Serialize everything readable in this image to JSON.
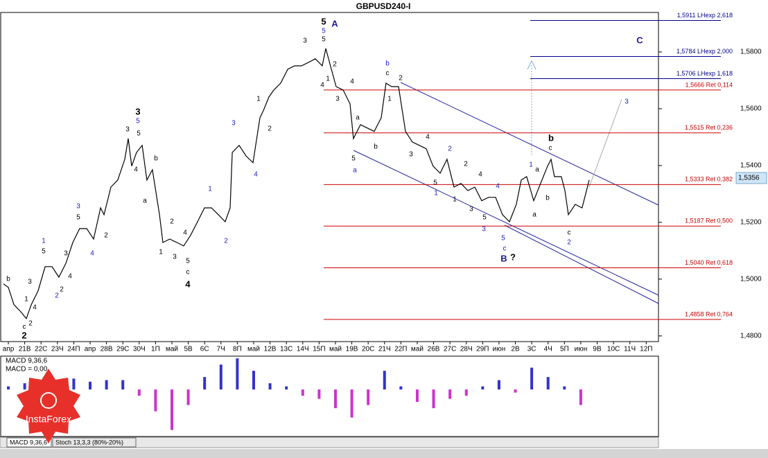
{
  "chart_data": {
    "type": "line",
    "title": "GBPUSD240-I",
    "color": "#000000",
    "categories": [
      "апр",
      "21В",
      "22С",
      "23Ч",
      "24П",
      "апр",
      "28В",
      "29С",
      "30Ч",
      "1П",
      "май",
      "5В",
      "6С",
      "7Ч",
      "8П",
      "май",
      "12В",
      "13С",
      "14Ч",
      "15П",
      "май",
      "19В",
      "20С",
      "21Ч",
      "22П",
      "май",
      "26В",
      "27С",
      "28Ч",
      "29П",
      "июн",
      "2В",
      "3С",
      "4Ч",
      "5П",
      "июн",
      "9В",
      "10С",
      "11Ч",
      "12П"
    ],
    "x": [
      -0.3,
      0,
      0.34,
      0.76,
      1.1,
      1.4,
      1.82,
      2.25,
      2.67,
      3.09,
      3.52,
      3.94,
      4.36,
      4.79,
      5.21,
      5.64,
      5.85,
      6.27,
      6.69,
      7.12,
      7.33,
      7.54,
      7.84,
      8.18,
      8.47,
      8.81,
      9.24,
      9.45,
      9.87,
      10.3,
      10.72,
      11.14,
      11.57,
      11.99,
      12.42,
      12.84,
      13.26,
      13.56,
      13.69,
      14.11,
      14.53,
      14.96,
      15.38,
      15.59,
      15.93,
      16.23,
      16.65,
      17.08,
      17.5,
      17.92,
      18.35,
      18.77,
      19.19,
      19.41,
      19.75,
      20.04,
      20.47,
      20.89,
      21.1,
      21.53,
      21.95,
      22.37,
      22.8,
      23.09,
      23.43,
      23.86,
      24.28,
      24.7,
      25.13,
      25.55,
      25.97,
      26.4,
      26.82,
      27.25,
      27.67,
      28.09,
      28.52,
      28.94,
      29.36,
      29.79,
      30.21,
      30.64,
      31.06,
      31.36,
      31.69,
      32.12,
      32.54,
      32.97,
      33.18,
      33.39,
      33.81,
      34.03,
      34.24,
      34.66,
      35.08,
      35.51
    ],
    "values": [
      1.4983,
      1.4971,
      1.491,
      1.4885,
      1.4861,
      1.491,
      1.4959,
      1.5044,
      1.5044,
      1.5007,
      1.5056,
      1.5129,
      1.5178,
      1.5178,
      1.5141,
      1.5251,
      1.5227,
      1.5324,
      1.5349,
      1.5422,
      1.5495,
      1.5398,
      1.5446,
      1.5471,
      1.5349,
      1.5385,
      1.5227,
      1.5129,
      1.5141,
      1.5129,
      1.5117,
      1.5154,
      1.5202,
      1.5251,
      1.5251,
      1.5227,
      1.5202,
      1.5251,
      1.5446,
      1.5471,
      1.5434,
      1.541,
      1.5568,
      1.5593,
      1.5641,
      1.5666,
      1.569,
      1.5739,
      1.5751,
      1.5751,
      1.5763,
      1.5776,
      1.5751,
      1.5812,
      1.5739,
      1.5678,
      1.5666,
      1.5617,
      1.5495,
      1.5544,
      1.5532,
      1.552,
      1.5568,
      1.569,
      1.5678,
      1.5678,
      1.552,
      1.5483,
      1.5471,
      1.5459,
      1.5398,
      1.5373,
      1.5422,
      1.5324,
      1.5337,
      1.5312,
      1.5324,
      1.5276,
      1.5288,
      1.5288,
      1.5227,
      1.5202,
      1.5263,
      1.5349,
      1.5361,
      1.5276,
      1.5337,
      1.5398,
      1.5422,
      1.5361,
      1.5361,
      1.5312,
      1.5227,
      1.5263,
      1.5251,
      1.5349
    ],
    "xlim": [
      -0.51,
      39.75
    ],
    "ylim": [
      1.478,
      1.5939
    ],
    "yticks": [
      {
        "value": 1.48,
        "label": "1,4800"
      },
      {
        "value": 1.5,
        "label": "1,5000"
      },
      {
        "value": 1.52,
        "label": "1,5200"
      },
      {
        "value": 1.54,
        "label": "1,5400"
      },
      {
        "value": 1.56,
        "label": "1,5600"
      },
      {
        "value": 1.58,
        "label": "1,5800"
      }
    ],
    "current_price": {
      "value": 1.5356,
      "label": "1,5356"
    },
    "levels": [
      {
        "value": 1.5911,
        "label": "1,5911 LHexp 2,618",
        "color": "#00008b"
      },
      {
        "value": 1.5784,
        "label": "1,5784 LHexp 2,000",
        "color": "#00008b"
      },
      {
        "value": 1.5706,
        "label": "1,5706 LHexp 1,618",
        "color": "#00008b"
      },
      {
        "value": 1.5666,
        "label": "1,5666 Ret 0,114",
        "color": "#cc0000"
      },
      {
        "value": 1.5515,
        "label": "1,5515 Ret 0,236",
        "color": "#cc0000"
      },
      {
        "value": 1.5333,
        "label": "1,5333 Ret 0,382",
        "color": "#cc0000"
      },
      {
        "value": 1.5187,
        "label": "1,5187 Ret 0,500",
        "color": "#cc0000"
      },
      {
        "value": 1.504,
        "label": "1,5040 Ret 0,618",
        "color": "#cc0000"
      },
      {
        "value": 1.4858,
        "label": "1,4858 Ret 0,764",
        "color": "#cc0000"
      }
    ],
    "wave_labels": [
      {
        "text": "b",
        "color": "#000000"
      },
      {
        "text": "c",
        "color": "#000000"
      },
      {
        "text": "2",
        "color": "#000000",
        "bold": true
      },
      {
        "text": "3",
        "color": "#000000"
      },
      {
        "text": "1",
        "color": "#000000"
      },
      {
        "text": "4",
        "color": "#000000"
      },
      {
        "text": "2",
        "color": "#000000"
      },
      {
        "text": "1",
        "color": "#2020c0"
      },
      {
        "text": "5",
        "color": "#000000"
      },
      {
        "text": "2",
        "color": "#2020c0"
      },
      {
        "text": "2",
        "color": "#000000"
      },
      {
        "text": "3",
        "color": "#000000"
      },
      {
        "text": "4",
        "color": "#000000"
      },
      {
        "text": "3",
        "color": "#2020c0"
      },
      {
        "text": "5",
        "color": "#000000"
      },
      {
        "text": "4",
        "color": "#2020c0"
      },
      {
        "text": "2",
        "color": "#000000"
      },
      {
        "text": "3",
        "color": "#000000"
      },
      {
        "text": "3",
        "color": "#000000",
        "bold": true
      },
      {
        "text": "5",
        "color": "#2020c0"
      },
      {
        "text": "5",
        "color": "#000000"
      },
      {
        "text": "4",
        "color": "#000000"
      },
      {
        "text": "b",
        "color": "#000000"
      },
      {
        "text": "a",
        "color": "#000000"
      },
      {
        "text": "1",
        "color": "#000000"
      },
      {
        "text": "2",
        "color": "#000000"
      },
      {
        "text": "3",
        "color": "#000000"
      },
      {
        "text": "4",
        "color": "#000000"
      },
      {
        "text": "5",
        "color": "#000000"
      },
      {
        "text": "c",
        "color": "#000000"
      },
      {
        "text": "4",
        "color": "#000000",
        "bold": true
      },
      {
        "text": "1",
        "color": "#2020c0"
      },
      {
        "text": "2",
        "color": "#2020c0"
      },
      {
        "text": "3",
        "color": "#2020c0"
      },
      {
        "text": "4",
        "color": "#2020c0"
      },
      {
        "text": "1",
        "color": "#000000"
      },
      {
        "text": "2",
        "color": "#000000"
      },
      {
        "text": "3",
        "color": "#000000"
      },
      {
        "text": "5",
        "color": "#000000",
        "bold": true
      },
      {
        "text": "5",
        "color": "#2020c0"
      },
      {
        "text": "5",
        "color": "#000000"
      },
      {
        "text": "A",
        "color": "#1a1aa0",
        "bold": true
      },
      {
        "text": "2",
        "color": "#000000"
      },
      {
        "text": "1",
        "color": "#000000"
      },
      {
        "text": "4",
        "color": "#000000"
      },
      {
        "text": "4",
        "color": "#000000"
      },
      {
        "text": "3",
        "color": "#000000"
      },
      {
        "text": "a",
        "color": "#000000"
      },
      {
        "text": "b",
        "color": "#000000"
      },
      {
        "text": "5",
        "color": "#000000"
      },
      {
        "text": "a",
        "color": "#2020c0"
      },
      {
        "text": "b",
        "color": "#2020c0"
      },
      {
        "text": "c",
        "color": "#000000"
      },
      {
        "text": "2",
        "color": "#000000"
      },
      {
        "text": "1",
        "color": "#000000"
      },
      {
        "text": "3",
        "color": "#000000"
      },
      {
        "text": "4",
        "color": "#000000"
      },
      {
        "text": "2",
        "color": "#2020c0"
      },
      {
        "text": "5",
        "color": "#000000"
      },
      {
        "text": "1",
        "color": "#2020c0"
      },
      {
        "text": "1",
        "color": "#000000"
      },
      {
        "text": "2",
        "color": "#000000"
      },
      {
        "text": "3",
        "color": "#000000"
      },
      {
        "text": "4",
        "color": "#000000"
      },
      {
        "text": "3",
        "color": "#2020c0"
      },
      {
        "text": "5",
        "color": "#000000"
      },
      {
        "text": "4",
        "color": "#2020c0"
      },
      {
        "text": "5",
        "color": "#2020c0"
      },
      {
        "text": "c",
        "color": "#2020c0"
      },
      {
        "text": "B",
        "color": "#1a1aa0",
        "bold": true
      },
      {
        "text": "?",
        "color": "#000000",
        "bold": true
      },
      {
        "text": "1",
        "color": "#2020c0"
      },
      {
        "text": "a",
        "color": "#000000"
      },
      {
        "text": "a",
        "color": "#000000"
      },
      {
        "text": "b",
        "color": "#000000"
      },
      {
        "text": "b",
        "color": "#000000",
        "bold": true
      },
      {
        "text": "c",
        "color": "#000000"
      },
      {
        "text": "c",
        "color": "#000000"
      },
      {
        "text": "2",
        "color": "#2020c0"
      },
      {
        "text": "3",
        "color": "#2020c0"
      },
      {
        "text": "C",
        "color": "#1a1aa0",
        "bold": true
      }
    ],
    "macd": {
      "title": "MACD 9,36,6",
      "value_text": "MACD = 0,00",
      "values": [
        0.1,
        0.2,
        0.15,
        0.3,
        0.35,
        0.25,
        0.3,
        0.3,
        -0.2,
        -0.7,
        -1.3,
        -0.5,
        0.4,
        0.8,
        1.0,
        0.6,
        0.2,
        0.1,
        -0.2,
        -0.3,
        -0.6,
        -0.9,
        -0.5,
        0.6,
        0.1,
        -0.4,
        -0.6,
        -0.3,
        -0.2,
        0.1,
        0.3,
        -0.1,
        0.7,
        0.4,
        0.1,
        -0.5
      ],
      "ylim": [
        -1.51,
        1.07
      ],
      "positive_color": "#3333cc",
      "negative_color": "#cc33cc"
    },
    "tabs": [
      "MACD 9,36,6",
      "Stoch 13,3,3 (80%-20%)"
    ],
    "logo": "InstaForex"
  }
}
